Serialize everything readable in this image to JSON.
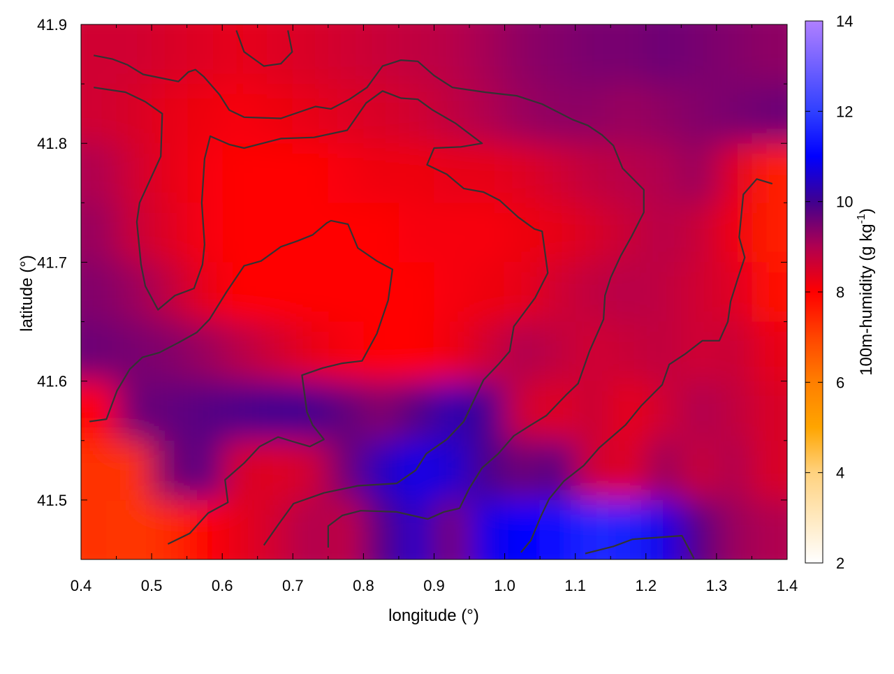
{
  "chart_data": {
    "type": "heatmap",
    "title": "",
    "xlabel": "longitude (°)",
    "ylabel": "latitude (°)",
    "xlim": [
      0.4,
      1.4
    ],
    "ylim": [
      41.45,
      41.9
    ],
    "xticks": [
      "0.4",
      "0.5",
      "0.6",
      "0.7",
      "0.8",
      "0.9",
      "1.0",
      "1.1",
      "1.2",
      "1.3",
      "1.4"
    ],
    "yticks": [
      "41.5",
      "41.6",
      "41.7",
      "41.8",
      "41.9"
    ],
    "colorbar": {
      "label_main": "100m-humidity (g kg",
      "label_sup": "-1",
      "label_end": ")",
      "range": [
        2,
        14
      ],
      "ticks": [
        "2",
        "4",
        "6",
        "8",
        "10",
        "12",
        "14"
      ],
      "palette": [
        [
          2,
          "#ffffff"
        ],
        [
          4,
          "#ffd27f"
        ],
        [
          5,
          "#ffa500"
        ],
        [
          6,
          "#ff7f00"
        ],
        [
          7,
          "#ff4500"
        ],
        [
          8,
          "#ff0000"
        ],
        [
          9,
          "#b00050"
        ],
        [
          10,
          "#400090"
        ],
        [
          11,
          "#0000ff"
        ],
        [
          12,
          "#3040ff"
        ],
        [
          14,
          "#b080ff"
        ]
      ]
    },
    "grid": {
      "lon_start": 0.4,
      "lon_step": 0.05,
      "lat_start": 41.9,
      "lat_step": -0.05,
      "values": [
        [
          8.6,
          8.6,
          8.5,
          8.4,
          8.3,
          8.4,
          8.5,
          8.6,
          8.7,
          8.8,
          8.9,
          9.1,
          9.3,
          9.4,
          9.5,
          9.5,
          9.6,
          9.5,
          9.4,
          9.3
        ],
        [
          8.6,
          8.5,
          8.3,
          8.2,
          8.1,
          8.2,
          8.3,
          8.4,
          8.5,
          8.6,
          8.8,
          9.0,
          9.2,
          9.3,
          9.3,
          9.2,
          9.3,
          9.4,
          9.5,
          9.6
        ],
        [
          9.0,
          8.6,
          8.3,
          8.1,
          8.0,
          8.0,
          8.0,
          8.1,
          8.2,
          8.2,
          8.3,
          8.3,
          8.4,
          8.6,
          8.8,
          8.9,
          9.0,
          9.2,
          8.4,
          7.6
        ],
        [
          9.2,
          8.7,
          8.4,
          8.1,
          8.0,
          8.0,
          8.0,
          8.0,
          8.0,
          8.1,
          8.1,
          8.1,
          8.2,
          8.3,
          8.5,
          8.7,
          8.9,
          8.7,
          8.2,
          7.6
        ],
        [
          9.4,
          9.2,
          8.8,
          8.3,
          8.0,
          8.0,
          8.0,
          8.0,
          8.0,
          8.0,
          8.1,
          8.2,
          8.3,
          8.6,
          8.8,
          8.9,
          8.8,
          8.6,
          8.4,
          7.9
        ],
        [
          9.6,
          9.5,
          9.4,
          9.2,
          8.9,
          8.6,
          8.3,
          8.1,
          8.0,
          8.0,
          8.2,
          8.6,
          9.0,
          8.8,
          8.6,
          8.7,
          8.8,
          8.6,
          8.7,
          8.3
        ],
        [
          8.0,
          9.6,
          9.7,
          9.8,
          9.9,
          10.0,
          10.0,
          9.7,
          9.4,
          9.8,
          10.3,
          10.0,
          8.6,
          8.4,
          8.7,
          8.3,
          8.6,
          9.0,
          8.8,
          8.5
        ],
        [
          7.3,
          7.3,
          9.5,
          9.8,
          8.5,
          8.4,
          8.6,
          9.6,
          10.4,
          10.8,
          10.6,
          9.9,
          9.6,
          9.8,
          8.6,
          8.4,
          9.2,
          8.7,
          9.0,
          8.5
        ],
        [
          7.3,
          7.2,
          7.4,
          8.0,
          8.3,
          8.6,
          9.0,
          8.8,
          9.8,
          10.5,
          9.5,
          10.8,
          11.0,
          11.2,
          11.6,
          11.5,
          10.8,
          9.8,
          9.2,
          9.0
        ]
      ]
    },
    "contour_color": "#333333",
    "contours": [
      [
        [
          0.418,
          41.874
        ],
        [
          0.444,
          41.871
        ],
        [
          0.466,
          41.866
        ],
        [
          0.488,
          41.858
        ],
        [
          0.538,
          41.852
        ],
        [
          0.552,
          41.86
        ],
        [
          0.562,
          41.862
        ],
        [
          0.574,
          41.856
        ],
        [
          0.596,
          41.841
        ],
        [
          0.61,
          41.828
        ],
        [
          0.631,
          41.822
        ],
        [
          0.683,
          41.821
        ],
        [
          0.732,
          41.831
        ],
        [
          0.754,
          41.829
        ],
        [
          0.78,
          41.837
        ],
        [
          0.805,
          41.847
        ],
        [
          0.827,
          41.865
        ],
        [
          0.853,
          41.87
        ],
        [
          0.877,
          41.869
        ],
        [
          0.9,
          41.857
        ],
        [
          0.926,
          41.847
        ],
        [
          0.972,
          41.843
        ],
        [
          1.017,
          41.84
        ],
        [
          1.053,
          41.833
        ],
        [
          1.096,
          41.82
        ],
        [
          1.118,
          41.815
        ],
        [
          1.138,
          41.807
        ],
        [
          1.154,
          41.798
        ],
        [
          1.167,
          41.779
        ],
        [
          1.197,
          41.761
        ],
        [
          1.197,
          41.742
        ],
        [
          1.179,
          41.721
        ],
        [
          1.164,
          41.705
        ],
        [
          1.15,
          41.687
        ],
        [
          1.142,
          41.672
        ],
        [
          1.14,
          41.652
        ],
        [
          1.12,
          41.625
        ],
        [
          1.104,
          41.598
        ],
        [
          1.088,
          41.589
        ],
        [
          1.059,
          41.571
        ],
        [
          1.037,
          41.563
        ],
        [
          1.013,
          41.554
        ],
        [
          0.991,
          41.539
        ],
        [
          0.968,
          41.527
        ],
        [
          0.95,
          41.51
        ],
        [
          0.936,
          41.493
        ],
        [
          0.914,
          41.49
        ],
        [
          0.891,
          41.484
        ],
        [
          0.847,
          41.49
        ],
        [
          0.796,
          41.491
        ],
        [
          0.77,
          41.487
        ],
        [
          0.75,
          41.478
        ],
        [
          0.75,
          41.46
        ]
      ],
      [
        [
          0.418,
          41.847
        ],
        [
          0.463,
          41.843
        ],
        [
          0.491,
          41.835
        ],
        [
          0.515,
          41.825
        ],
        [
          0.513,
          41.789
        ],
        [
          0.483,
          41.75
        ],
        [
          0.479,
          41.734
        ],
        [
          0.485,
          41.698
        ],
        [
          0.491,
          41.68
        ],
        [
          0.509,
          41.66
        ],
        [
          0.533,
          41.672
        ],
        [
          0.56,
          41.678
        ],
        [
          0.572,
          41.698
        ],
        [
          0.575,
          41.715
        ],
        [
          0.571,
          41.75
        ],
        [
          0.575,
          41.787
        ],
        [
          0.583,
          41.806
        ],
        [
          0.61,
          41.799
        ],
        [
          0.631,
          41.796
        ],
        [
          0.683,
          41.804
        ],
        [
          0.73,
          41.805
        ],
        [
          0.777,
          41.811
        ],
        [
          0.804,
          41.834
        ],
        [
          0.827,
          41.844
        ],
        [
          0.853,
          41.838
        ],
        [
          0.877,
          41.837
        ],
        [
          0.898,
          41.828
        ],
        [
          0.93,
          41.817
        ],
        [
          0.968,
          41.8
        ],
        [
          0.938,
          41.797
        ],
        [
          0.9,
          41.796
        ],
        [
          0.89,
          41.782
        ],
        [
          0.918,
          41.774
        ],
        [
          0.942,
          41.762
        ],
        [
          0.97,
          41.759
        ],
        [
          0.993,
          41.752
        ],
        [
          1.019,
          41.738
        ],
        [
          1.042,
          41.728
        ],
        [
          1.053,
          41.726
        ],
        [
          1.061,
          41.691
        ],
        [
          1.043,
          41.67
        ],
        [
          1.013,
          41.646
        ],
        [
          1.007,
          41.625
        ],
        [
          0.991,
          41.614
        ],
        [
          0.97,
          41.601
        ],
        [
          0.942,
          41.566
        ],
        [
          0.918,
          41.551
        ],
        [
          0.889,
          41.539
        ],
        [
          0.874,
          41.525
        ],
        [
          0.847,
          41.514
        ],
        [
          0.792,
          41.512
        ],
        [
          0.744,
          41.506
        ],
        [
          0.701,
          41.497
        ],
        [
          0.679,
          41.479
        ],
        [
          0.659,
          41.462
        ]
      ],
      [
        [
          0.412,
          41.566
        ],
        [
          0.436,
          41.568
        ],
        [
          0.451,
          41.592
        ],
        [
          0.469,
          41.61
        ],
        [
          0.487,
          41.62
        ],
        [
          0.511,
          41.624
        ],
        [
          0.54,
          41.633
        ],
        [
          0.564,
          41.641
        ],
        [
          0.582,
          41.652
        ],
        [
          0.606,
          41.675
        ],
        [
          0.631,
          41.697
        ],
        [
          0.655,
          41.701
        ],
        [
          0.683,
          41.713
        ],
        [
          0.707,
          41.718
        ],
        [
          0.728,
          41.723
        ],
        [
          0.748,
          41.733
        ],
        [
          0.754,
          41.735
        ],
        [
          0.778,
          41.732
        ],
        [
          0.792,
          41.712
        ],
        [
          0.819,
          41.701
        ],
        [
          0.841,
          41.694
        ],
        [
          0.835,
          41.668
        ],
        [
          0.819,
          41.64
        ],
        [
          0.798,
          41.617
        ],
        [
          0.77,
          41.615
        ],
        [
          0.742,
          41.611
        ],
        [
          0.713,
          41.605
        ],
        [
          0.72,
          41.574
        ],
        [
          0.728,
          41.563
        ],
        [
          0.744,
          41.551
        ],
        [
          0.724,
          41.545
        ],
        [
          0.701,
          41.549
        ],
        [
          0.679,
          41.553
        ],
        [
          0.653,
          41.545
        ],
        [
          0.631,
          41.531
        ],
        [
          0.604,
          41.517
        ],
        [
          0.608,
          41.498
        ],
        [
          0.58,
          41.489
        ],
        [
          0.554,
          41.472
        ],
        [
          0.523,
          41.463
        ]
      ],
      [
        [
          1.379,
          41.766
        ],
        [
          1.357,
          41.77
        ],
        [
          1.338,
          41.757
        ],
        [
          1.332,
          41.721
        ],
        [
          1.34,
          41.704
        ],
        [
          1.33,
          41.686
        ],
        [
          1.32,
          41.667
        ],
        [
          1.316,
          41.65
        ],
        [
          1.304,
          41.634
        ],
        [
          1.28,
          41.634
        ],
        [
          1.256,
          41.623
        ],
        [
          1.233,
          41.614
        ],
        [
          1.223,
          41.597
        ],
        [
          1.193,
          41.579
        ],
        [
          1.171,
          41.563
        ],
        [
          1.134,
          41.544
        ],
        [
          1.112,
          41.529
        ],
        [
          1.084,
          41.516
        ],
        [
          1.063,
          41.501
        ],
        [
          1.051,
          41.486
        ],
        [
          1.037,
          41.466
        ],
        [
          1.023,
          41.456
        ]
      ],
      [
        [
          0.62,
          41.895
        ],
        [
          0.631,
          41.877
        ],
        [
          0.659,
          41.865
        ],
        [
          0.683,
          41.867
        ],
        [
          0.699,
          41.877
        ],
        [
          0.693,
          41.895
        ]
      ],
      [
        [
          1.114,
          41.455
        ],
        [
          1.154,
          41.461
        ],
        [
          1.181,
          41.467
        ],
        [
          1.251,
          41.47
        ],
        [
          1.268,
          41.451
        ]
      ]
    ]
  }
}
